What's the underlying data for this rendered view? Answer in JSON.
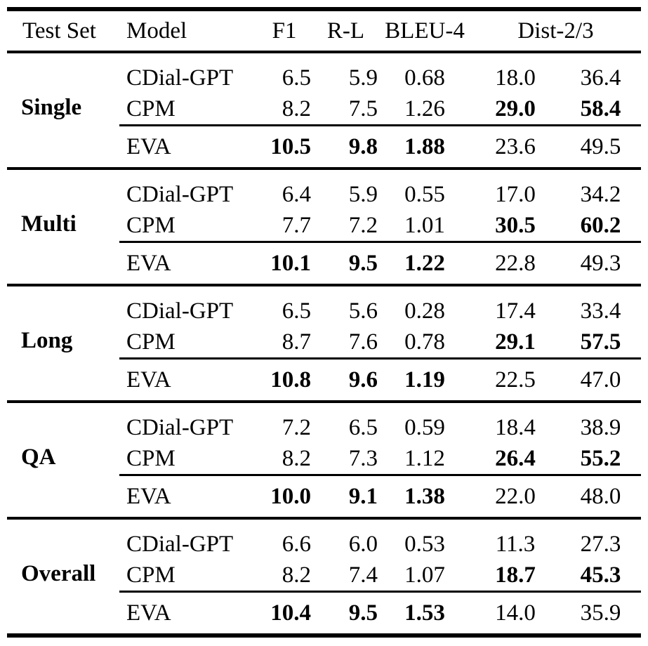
{
  "table": {
    "header": {
      "test_set": "Test Set",
      "model": "Model",
      "f1": "F1",
      "rl": "R-L",
      "bleu4": "BLEU-4",
      "dist": "Dist-2/3"
    },
    "groups": [
      {
        "test_set": "Single",
        "rows": [
          {
            "model": "CDial-GPT",
            "f1": "6.5",
            "rl": "5.9",
            "bleu4": "0.68",
            "dist2": "18.0",
            "dist3": "36.4"
          },
          {
            "model": "CPM",
            "f1": "8.2",
            "rl": "7.5",
            "bleu4": "1.26",
            "dist2": "29.0",
            "dist3": "58.4"
          }
        ],
        "eva": {
          "model": "EVA",
          "f1": "10.5",
          "rl": "9.8",
          "bleu4": "1.88",
          "dist2": "23.6",
          "dist3": "49.5"
        }
      },
      {
        "test_set": "Multi",
        "rows": [
          {
            "model": "CDial-GPT",
            "f1": "6.4",
            "rl": "5.9",
            "bleu4": "0.55",
            "dist2": "17.0",
            "dist3": "34.2"
          },
          {
            "model": "CPM",
            "f1": "7.7",
            "rl": "7.2",
            "bleu4": "1.01",
            "dist2": "30.5",
            "dist3": "60.2"
          }
        ],
        "eva": {
          "model": "EVA",
          "f1": "10.1",
          "rl": "9.5",
          "bleu4": "1.22",
          "dist2": "22.8",
          "dist3": "49.3"
        }
      },
      {
        "test_set": "Long",
        "rows": [
          {
            "model": "CDial-GPT",
            "f1": "6.5",
            "rl": "5.6",
            "bleu4": "0.28",
            "dist2": "17.4",
            "dist3": "33.4"
          },
          {
            "model": "CPM",
            "f1": "8.7",
            "rl": "7.6",
            "bleu4": "0.78",
            "dist2": "29.1",
            "dist3": "57.5"
          }
        ],
        "eva": {
          "model": "EVA",
          "f1": "10.8",
          "rl": "9.6",
          "bleu4": "1.19",
          "dist2": "22.5",
          "dist3": "47.0"
        }
      },
      {
        "test_set": "QA",
        "rows": [
          {
            "model": "CDial-GPT",
            "f1": "7.2",
            "rl": "6.5",
            "bleu4": "0.59",
            "dist2": "18.4",
            "dist3": "38.9"
          },
          {
            "model": "CPM",
            "f1": "8.2",
            "rl": "7.3",
            "bleu4": "1.12",
            "dist2": "26.4",
            "dist3": "55.2"
          }
        ],
        "eva": {
          "model": "EVA",
          "f1": "10.0",
          "rl": "9.1",
          "bleu4": "1.38",
          "dist2": "22.0",
          "dist3": "48.0"
        }
      },
      {
        "test_set": "Overall",
        "rows": [
          {
            "model": "CDial-GPT",
            "f1": "6.6",
            "rl": "6.0",
            "bleu4": "0.53",
            "dist2": "11.3",
            "dist3": "27.3"
          },
          {
            "model": "CPM",
            "f1": "8.2",
            "rl": "7.4",
            "bleu4": "1.07",
            "dist2": "18.7",
            "dist3": "45.3"
          }
        ],
        "eva": {
          "model": "EVA",
          "f1": "10.4",
          "rl": "9.5",
          "bleu4": "1.53",
          "dist2": "14.0",
          "dist3": "35.9"
        }
      }
    ]
  }
}
